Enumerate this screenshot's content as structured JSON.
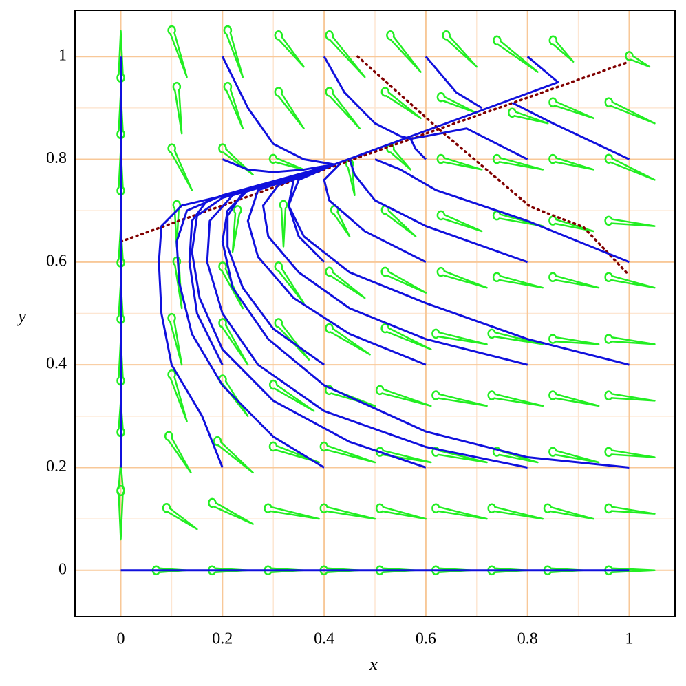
{
  "chart_data": {
    "type": "phase",
    "xlabel": "x",
    "ylabel": "y",
    "xlim": [
      -0.09,
      1.09
    ],
    "ylim": [
      -0.09,
      1.09
    ],
    "xticks": [
      0,
      0.2,
      0.4,
      0.6,
      0.8,
      1
    ],
    "yticks": [
      0,
      0.2,
      0.4,
      0.6,
      0.8,
      1
    ],
    "xminor": [
      0.1,
      0.3,
      0.5,
      0.7,
      0.9
    ],
    "yminor": [
      0.1,
      0.3,
      0.5,
      0.7,
      0.9
    ],
    "grid": true,
    "grid_color": "#f8c898",
    "minor_grid_color": "#fde6d2",
    "field": {
      "color": "#22ee22",
      "arrows": [
        [
          0.07,
          0,
          0.13,
          0
        ],
        [
          0.18,
          0,
          0.25,
          0
        ],
        [
          0.29,
          0,
          0.36,
          0
        ],
        [
          0.4,
          0,
          0.47,
          0
        ],
        [
          0.51,
          0,
          0.58,
          0
        ],
        [
          0.62,
          0,
          0.69,
          0
        ],
        [
          0.73,
          0,
          0.8,
          0
        ],
        [
          0.84,
          0,
          0.91,
          0
        ],
        [
          0.96,
          0,
          1.05,
          0
        ],
        [
          0.09,
          0.12,
          0.15,
          0.08
        ],
        [
          0.18,
          0.13,
          0.26,
          0.09
        ],
        [
          0.29,
          0.12,
          0.39,
          0.1
        ],
        [
          0.4,
          0.12,
          0.5,
          0.1
        ],
        [
          0.51,
          0.12,
          0.6,
          0.1
        ],
        [
          0.62,
          0.12,
          0.72,
          0.1
        ],
        [
          0.73,
          0.12,
          0.83,
          0.1
        ],
        [
          0.84,
          0.12,
          0.93,
          0.1
        ],
        [
          0.96,
          0.12,
          1.05,
          0.11
        ],
        [
          0.094,
          0.26,
          0.138,
          0.19
        ],
        [
          0.19,
          0.25,
          0.26,
          0.19
        ],
        [
          0.3,
          0.24,
          0.39,
          0.21
        ],
        [
          0.4,
          0.24,
          0.5,
          0.21
        ],
        [
          0.51,
          0.23,
          0.61,
          0.21
        ],
        [
          0.62,
          0.23,
          0.72,
          0.21
        ],
        [
          0.74,
          0.23,
          0.82,
          0.21
        ],
        [
          0.85,
          0.23,
          0.94,
          0.21
        ],
        [
          0.96,
          0.23,
          1.05,
          0.22
        ],
        [
          0.1,
          0.38,
          0.13,
          0.29
        ],
        [
          0.2,
          0.37,
          0.25,
          0.3
        ],
        [
          0.3,
          0.36,
          0.38,
          0.31
        ],
        [
          0.41,
          0.35,
          0.5,
          0.32
        ],
        [
          0.51,
          0.35,
          0.61,
          0.32
        ],
        [
          0.62,
          0.34,
          0.72,
          0.32
        ],
        [
          0.73,
          0.34,
          0.83,
          0.32
        ],
        [
          0.85,
          0.34,
          0.94,
          0.32
        ],
        [
          0.96,
          0.34,
          1.05,
          0.33
        ],
        [
          0.1,
          0.49,
          0.12,
          0.4
        ],
        [
          0.2,
          0.48,
          0.25,
          0.4
        ],
        [
          0.31,
          0.48,
          0.37,
          0.41
        ],
        [
          0.41,
          0.47,
          0.49,
          0.42
        ],
        [
          0.52,
          0.47,
          0.61,
          0.43
        ],
        [
          0.62,
          0.46,
          0.72,
          0.44
        ],
        [
          0.73,
          0.46,
          0.83,
          0.44
        ],
        [
          0.85,
          0.45,
          0.94,
          0.44
        ],
        [
          0.96,
          0.45,
          1.05,
          0.44
        ],
        [
          0.11,
          0.6,
          0.12,
          0.51
        ],
        [
          0.2,
          0.59,
          0.24,
          0.51
        ],
        [
          0.31,
          0.59,
          0.36,
          0.52
        ],
        [
          0.41,
          0.58,
          0.48,
          0.53
        ],
        [
          0.52,
          0.58,
          0.6,
          0.54
        ],
        [
          0.63,
          0.58,
          0.72,
          0.55
        ],
        [
          0.74,
          0.57,
          0.83,
          0.55
        ],
        [
          0.85,
          0.57,
          0.94,
          0.55
        ],
        [
          0.96,
          0.57,
          1.05,
          0.55
        ],
        [
          0.11,
          0.71,
          0.11,
          0.63
        ],
        [
          0.23,
          0.7,
          0.22,
          0.62
        ],
        [
          0.32,
          0.71,
          0.32,
          0.63
        ],
        [
          0.42,
          0.7,
          0.45,
          0.65
        ],
        [
          0.52,
          0.7,
          0.58,
          0.65
        ],
        [
          0.63,
          0.69,
          0.71,
          0.66
        ],
        [
          0.74,
          0.69,
          0.83,
          0.67
        ],
        [
          0.85,
          0.68,
          0.93,
          0.66
        ],
        [
          0.96,
          0.68,
          1.05,
          0.67
        ],
        [
          0.1,
          0.82,
          0.14,
          0.74
        ],
        [
          0.2,
          0.82,
          0.26,
          0.77
        ],
        [
          0.3,
          0.8,
          0.36,
          0.78
        ],
        [
          0.45,
          0.79,
          0.46,
          0.73
        ],
        [
          0.53,
          0.82,
          0.57,
          0.78
        ],
        [
          0.63,
          0.8,
          0.71,
          0.78
        ],
        [
          0.74,
          0.8,
          0.83,
          0.78
        ],
        [
          0.85,
          0.8,
          0.93,
          0.78
        ],
        [
          0.96,
          0.8,
          1.05,
          0.76
        ],
        [
          0.11,
          0.94,
          0.12,
          0.85
        ],
        [
          0.21,
          0.94,
          0.24,
          0.86
        ],
        [
          0.31,
          0.93,
          0.36,
          0.86
        ],
        [
          0.41,
          0.93,
          0.47,
          0.86
        ],
        [
          0.52,
          0.93,
          0.59,
          0.88
        ],
        [
          0.63,
          0.92,
          0.7,
          0.89
        ],
        [
          0.77,
          0.89,
          0.84,
          0.87
        ],
        [
          0.85,
          0.91,
          0.93,
          0.88
        ],
        [
          0.96,
          0.91,
          1.05,
          0.87
        ],
        [
          0.1,
          1.05,
          0.13,
          0.96
        ],
        [
          0.21,
          1.05,
          0.24,
          0.96
        ],
        [
          0.31,
          1.04,
          0.36,
          0.98
        ],
        [
          0.41,
          1.04,
          0.48,
          0.96
        ],
        [
          0.53,
          1.04,
          0.59,
          0.97
        ],
        [
          0.64,
          1.04,
          0.7,
          0.98
        ],
        [
          0.74,
          1.03,
          0.82,
          0.97
        ],
        [
          0.85,
          1.03,
          0.89,
          0.99
        ],
        [
          1,
          1,
          1.04,
          0.98
        ],
        [
          0,
          0.96,
          0,
          1.05
        ],
        [
          0,
          0.85,
          0,
          0.93
        ],
        [
          0,
          0.74,
          0,
          0.82
        ],
        [
          0,
          0.6,
          0,
          0.67
        ],
        [
          0,
          0.49,
          0,
          0.56
        ],
        [
          0,
          0.37,
          0,
          0.45
        ],
        [
          0,
          0.27,
          0,
          0.33
        ],
        [
          0,
          0.155,
          0,
          0.21
        ],
        [
          0,
          0.155,
          0,
          0.06
        ]
      ]
    },
    "trajectories": {
      "color": "#1010dd",
      "lines": [
        {
          "x": [
            0.2,
            0.16,
            0.1,
            0.08,
            0.075,
            0.08,
            0.12,
            0.25,
            0.42
          ],
          "y": [
            0.2,
            0.3,
            0.4,
            0.5,
            0.6,
            0.67,
            0.71,
            0.74,
            0.79
          ]
        },
        {
          "x": [
            0.4,
            0.3,
            0.2,
            0.14,
            0.115,
            0.11,
            0.13,
            0.2,
            0.42
          ],
          "y": [
            0.2,
            0.26,
            0.36,
            0.46,
            0.56,
            0.64,
            0.7,
            0.73,
            0.79
          ]
        },
        {
          "x": [
            0.6,
            0.45,
            0.3,
            0.2,
            0.155,
            0.14,
            0.15,
            0.2,
            0.42
          ],
          "y": [
            0.2,
            0.25,
            0.33,
            0.43,
            0.53,
            0.62,
            0.69,
            0.725,
            0.79
          ]
        },
        {
          "x": [
            0.8,
            0.6,
            0.4,
            0.27,
            0.2,
            0.17,
            0.175,
            0.22,
            0.42
          ],
          "y": [
            0.2,
            0.24,
            0.31,
            0.4,
            0.5,
            0.6,
            0.68,
            0.73,
            0.79
          ]
        },
        {
          "x": [
            1,
            0.8,
            0.6,
            0.4,
            0.29,
            0.22,
            0.2,
            0.21,
            0.25,
            0.42
          ],
          "y": [
            0.2,
            0.22,
            0.27,
            0.36,
            0.45,
            0.55,
            0.64,
            0.7,
            0.74,
            0.79
          ]
        },
        {
          "x": [
            0.2,
            0.15,
            0.135,
            0.14,
            0.17,
            0.42
          ],
          "y": [
            0.4,
            0.5,
            0.6,
            0.68,
            0.72,
            0.79
          ]
        },
        {
          "x": [
            0.4,
            0.3,
            0.24,
            0.21,
            0.21,
            0.24,
            0.42
          ],
          "y": [
            0.4,
            0.47,
            0.55,
            0.63,
            0.69,
            0.735,
            0.79
          ]
        },
        {
          "x": [
            0.6,
            0.45,
            0.34,
            0.27,
            0.25,
            0.27,
            0.42
          ],
          "y": [
            0.4,
            0.46,
            0.53,
            0.61,
            0.68,
            0.74,
            0.79
          ]
        },
        {
          "x": [
            0.8,
            0.6,
            0.45,
            0.35,
            0.29,
            0.28,
            0.31,
            0.42
          ],
          "y": [
            0.4,
            0.45,
            0.51,
            0.58,
            0.65,
            0.71,
            0.75,
            0.79
          ]
        },
        {
          "x": [
            1,
            0.8,
            0.6,
            0.45,
            0.36,
            0.33,
            0.34,
            0.42
          ],
          "y": [
            0.4,
            0.45,
            0.52,
            0.58,
            0.65,
            0.71,
            0.76,
            0.79
          ]
        },
        {
          "x": [
            0.4,
            0.35,
            0.33,
            0.35,
            0.42
          ],
          "y": [
            0.6,
            0.65,
            0.71,
            0.76,
            0.79
          ]
        },
        {
          "x": [
            0.6,
            0.48,
            0.41,
            0.4,
            0.43
          ],
          "y": [
            0.6,
            0.66,
            0.72,
            0.76,
            0.79
          ]
        },
        {
          "x": [
            0.8,
            0.6,
            0.5,
            0.46,
            0.45
          ],
          "y": [
            0.6,
            0.67,
            0.72,
            0.77,
            0.8
          ]
        },
        {
          "x": [
            1,
            0.8,
            0.62,
            0.55,
            0.5
          ],
          "y": [
            0.6,
            0.68,
            0.74,
            0.78,
            0.8
          ]
        },
        {
          "x": [
            0.2,
            0.25,
            0.3,
            0.36,
            0.42
          ],
          "y": [
            0.8,
            0.78,
            0.775,
            0.78,
            0.79
          ]
        },
        {
          "x": [
            0.6,
            0.58,
            0.57
          ],
          "y": [
            0.8,
            0.82,
            0.84
          ]
        },
        {
          "x": [
            0.8,
            0.68,
            0.6,
            0.57
          ],
          "y": [
            0.8,
            0.86,
            0.845,
            0.84
          ]
        },
        {
          "x": [
            1,
            0.85,
            0.77
          ],
          "y": [
            0.8,
            0.87,
            0.91
          ]
        },
        {
          "x": [
            0.2,
            0.25,
            0.3,
            0.36,
            0.42
          ],
          "y": [
            1,
            0.9,
            0.83,
            0.8,
            0.79
          ]
        },
        {
          "x": [
            0.4,
            0.44,
            0.5,
            0.55,
            0.57
          ],
          "y": [
            1,
            0.93,
            0.87,
            0.845,
            0.84
          ]
        },
        {
          "x": [
            0.6,
            0.66,
            0.71
          ],
          "y": [
            1,
            0.93,
            0.9
          ]
        },
        {
          "x": [
            0.8,
            0.86,
            0.42
          ],
          "y": [
            1,
            0.95,
            0.79
          ]
        },
        {
          "x": [
            0,
            0
          ],
          "y": [
            0.2,
            1
          ]
        },
        {
          "x": [
            0,
            1
          ],
          "y": [
            0,
            0
          ]
        }
      ]
    },
    "nullclines": {
      "color": "#800000",
      "lines": [
        {
          "x": [
            0,
            1
          ],
          "y": [
            0.64,
            0.99
          ]
        },
        {
          "x": [
            0.466,
            0.63,
            0.805,
            0.91,
            1
          ],
          "y": [
            1,
            0.855,
            0.708,
            0.668,
            0.574
          ]
        }
      ]
    }
  }
}
